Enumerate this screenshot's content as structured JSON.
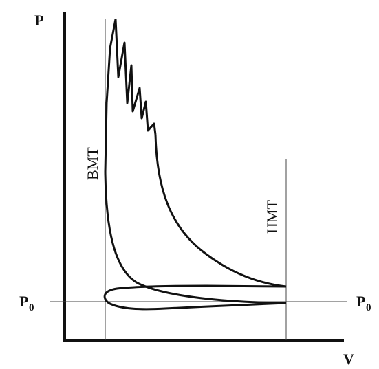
{
  "diagram": {
    "labels": {
      "y_axis": "P",
      "x_axis": "V",
      "left_dead_center": "BMT",
      "right_dead_center": "HMT",
      "ambient_pressure_main": "P",
      "ambient_pressure_sub": "0"
    },
    "colors": {
      "background": "#ffffff",
      "curve": "#111111",
      "guide": "#444444"
    }
  }
}
